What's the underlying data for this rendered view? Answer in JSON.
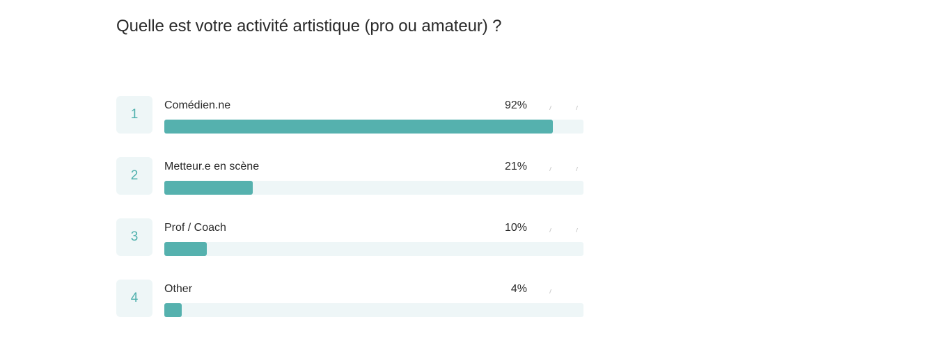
{
  "question": "Quelle est votre activité artistique (pro ou amateur) ?",
  "colors": {
    "bar_fill": "#55b1ae",
    "track": "#eef6f7",
    "rank_text": "#4fb0ad"
  },
  "chart_data": {
    "type": "bar",
    "orientation": "horizontal",
    "categories": [
      "Comédien.ne",
      "Metteur.e en scène",
      "Prof / Coach",
      "Other"
    ],
    "ranks": [
      "1",
      "2",
      "3",
      "4"
    ],
    "values": [
      92,
      21,
      10,
      4
    ],
    "value_labels": [
      "92%",
      "21%",
      "10%",
      "4%"
    ],
    "xlim": [
      0,
      100
    ]
  }
}
